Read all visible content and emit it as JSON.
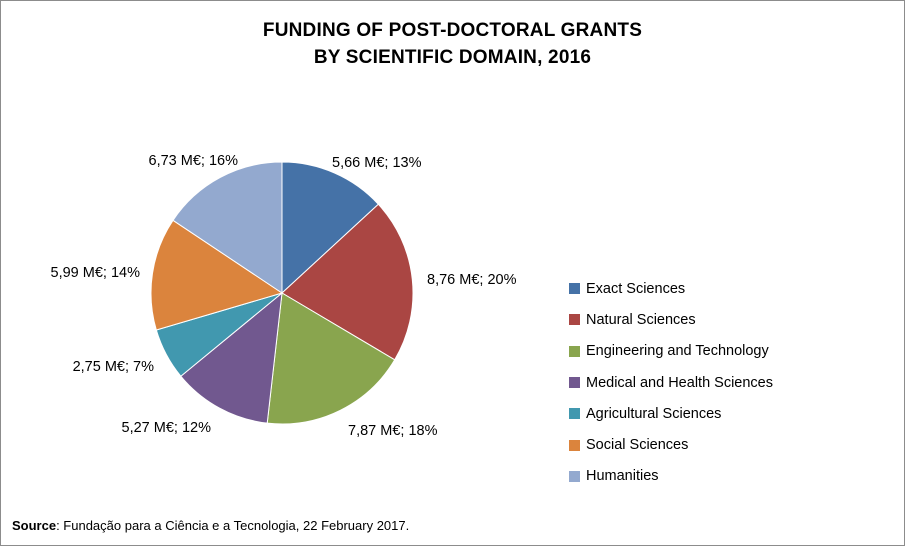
{
  "chart_data": {
    "type": "pie",
    "title_lines": [
      "FUNDING OF POST-DOCTORAL GRANTS",
      "BY SCIENTIFIC DOMAIN, 2016"
    ],
    "categories": [
      "Exact Sciences",
      "Natural Sciences",
      "Engineering and Technology",
      "Medical and Health Sciences",
      "Agricultural Sciences",
      "Social Sciences",
      "Humanities"
    ],
    "values": [
      5.66,
      8.76,
      7.87,
      5.27,
      2.75,
      5.99,
      6.73
    ],
    "percentages": [
      13,
      20,
      18,
      12,
      7,
      14,
      16
    ],
    "data_labels": [
      "5,66 M€; 13%",
      "8,76 M€; 20%",
      "7,87 M€; 18%",
      "5,27 M€; 12%",
      "2,75 M€; 7%",
      "5,99 M€; 14%",
      "6,73 M€; 16%"
    ],
    "colors": [
      "#4572A7",
      "#AA4643",
      "#89A54E",
      "#71588F",
      "#4198AF",
      "#DB843D",
      "#93A9CF"
    ],
    "legend_position": "right"
  },
  "source": {
    "label": "Source",
    "text": ": Fundação para a Ciência e a Tecnologia, 22 February 2017."
  }
}
